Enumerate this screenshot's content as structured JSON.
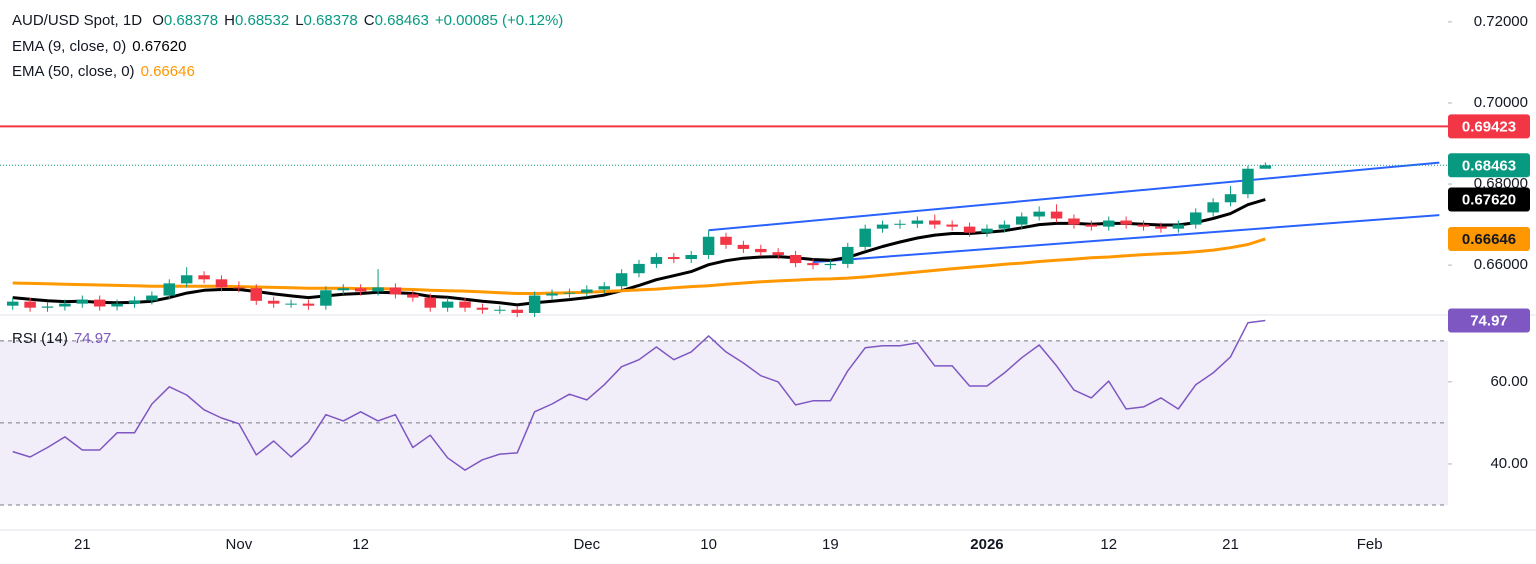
{
  "chart_data": {
    "type": "candlestick",
    "title": "AUD/USD Spot, 1D",
    "ohlc_legend": [
      {
        "label": "O",
        "value": "0.68378"
      },
      {
        "label": "H",
        "value": "0.68532"
      },
      {
        "label": "L",
        "value": "0.68378"
      },
      {
        "label": "C",
        "value": "0.68463"
      }
    ],
    "change": "+0.00085 (+0.12%)",
    "categories": [
      null,
      null,
      null,
      null,
      "21",
      null,
      null,
      null,
      null,
      null,
      null,
      null,
      null,
      "Nov",
      null,
      null,
      null,
      null,
      null,
      null,
      "12",
      null,
      null,
      null,
      null,
      null,
      null,
      null,
      null,
      null,
      null,
      null,
      null,
      "Dec",
      null,
      null,
      null,
      null,
      null,
      null,
      "10",
      null,
      null,
      null,
      null,
      null,
      null,
      "19",
      null,
      null,
      null,
      null,
      null,
      null,
      null,
      null,
      "2026",
      null,
      null,
      null,
      null,
      null,
      null,
      "12",
      null,
      null,
      null,
      null,
      null,
      null,
      "21",
      null,
      null,
      null,
      null,
      null,
      null,
      null,
      "Feb",
      null,
      null,
      null,
      null
    ],
    "open": [
      0.65,
      0.651,
      0.6495,
      0.6498,
      0.6505,
      0.6515,
      0.6498,
      0.6505,
      0.6513,
      0.6525,
      0.6555,
      0.6575,
      0.6565,
      0.6545,
      0.6543,
      0.6512,
      0.6505,
      0.6505,
      0.65,
      0.6538,
      0.6543,
      0.6535,
      0.6545,
      0.6528,
      0.652,
      0.6495,
      0.651,
      0.6495,
      0.649,
      0.649,
      0.6482,
      0.6525,
      0.653,
      0.6532,
      0.654,
      0.6548,
      0.658,
      0.6603,
      0.662,
      0.6615,
      0.6625,
      0.667,
      0.665,
      0.664,
      0.6632,
      0.6625,
      0.6605,
      0.66,
      0.6603,
      0.6645,
      0.669,
      0.67,
      0.6702,
      0.671,
      0.67,
      0.6695,
      0.668,
      0.669,
      0.67,
      0.672,
      0.6732,
      0.6715,
      0.67,
      0.6695,
      0.671,
      0.67,
      0.6695,
      0.669,
      0.67,
      0.673,
      0.6755,
      0.6775,
      0.68378,
      null,
      null,
      null,
      null,
      null,
      null,
      null,
      null,
      null,
      null
    ],
    "high": [
      0.652,
      0.652,
      0.6508,
      0.6515,
      0.6525,
      0.6525,
      0.6515,
      0.6523,
      0.6535,
      0.6565,
      0.6595,
      0.6585,
      0.6575,
      0.656,
      0.6553,
      0.6522,
      0.6515,
      0.6515,
      0.6548,
      0.6553,
      0.6553,
      0.659,
      0.6555,
      0.6538,
      0.653,
      0.652,
      0.652,
      0.6505,
      0.65,
      0.65,
      0.6535,
      0.654,
      0.6542,
      0.655,
      0.6558,
      0.659,
      0.6613,
      0.663,
      0.663,
      0.6635,
      0.6686,
      0.668,
      0.666,
      0.665,
      0.6642,
      0.6635,
      0.6615,
      0.6613,
      0.6655,
      0.67,
      0.671,
      0.6712,
      0.672,
      0.6725,
      0.671,
      0.6705,
      0.67,
      0.671,
      0.673,
      0.6745,
      0.675,
      0.6725,
      0.671,
      0.672,
      0.672,
      0.671,
      0.6705,
      0.671,
      0.674,
      0.6765,
      0.6795,
      0.6845,
      0.68532,
      null,
      null,
      null,
      null,
      null,
      null,
      null,
      null,
      null,
      null
    ],
    "low": [
      0.649,
      0.6485,
      0.6485,
      0.6488,
      0.6495,
      0.6488,
      0.6488,
      0.6495,
      0.6503,
      0.6515,
      0.6545,
      0.6555,
      0.6535,
      0.6533,
      0.6502,
      0.6495,
      0.6495,
      0.649,
      0.649,
      0.6528,
      0.6525,
      0.6525,
      0.6518,
      0.651,
      0.6485,
      0.6485,
      0.6485,
      0.648,
      0.648,
      0.6472,
      0.6472,
      0.6515,
      0.652,
      0.6522,
      0.653,
      0.6538,
      0.657,
      0.6593,
      0.6605,
      0.6605,
      0.6615,
      0.664,
      0.663,
      0.6622,
      0.6615,
      0.6595,
      0.659,
      0.659,
      0.6593,
      0.6635,
      0.668,
      0.669,
      0.6692,
      0.669,
      0.6685,
      0.667,
      0.667,
      0.668,
      0.669,
      0.671,
      0.6705,
      0.669,
      0.6685,
      0.6685,
      0.669,
      0.6685,
      0.668,
      0.668,
      0.669,
      0.672,
      0.6745,
      0.6765,
      0.68378,
      null,
      null,
      null,
      null,
      null,
      null,
      null,
      null,
      null,
      null
    ],
    "close": [
      0.651,
      0.6495,
      0.6498,
      0.6505,
      0.6515,
      0.6498,
      0.6505,
      0.6513,
      0.6525,
      0.6555,
      0.6575,
      0.6565,
      0.6545,
      0.6543,
      0.6512,
      0.6505,
      0.6505,
      0.65,
      0.6538,
      0.6543,
      0.6535,
      0.6545,
      0.6528,
      0.652,
      0.6495,
      0.651,
      0.6495,
      0.649,
      0.649,
      0.6482,
      0.6525,
      0.653,
      0.6532,
      0.654,
      0.6548,
      0.658,
      0.6603,
      0.662,
      0.6615,
      0.6625,
      0.667,
      0.665,
      0.664,
      0.6632,
      0.6625,
      0.6605,
      0.66,
      0.6603,
      0.6645,
      0.669,
      0.67,
      0.6702,
      0.671,
      0.67,
      0.6695,
      0.668,
      0.669,
      0.67,
      0.672,
      0.6732,
      0.6715,
      0.67,
      0.6695,
      0.671,
      0.67,
      0.6695,
      0.669,
      0.67,
      0.673,
      0.6755,
      0.6775,
      0.68378,
      0.68463,
      null,
      null,
      null,
      null,
      null,
      null,
      null,
      null,
      null,
      null
    ],
    "up_color": "#089981",
    "down_color": "#f23645",
    "series": [
      {
        "name": "EMA (9, close, 0)",
        "color": "#000000",
        "last_label": "0.67620",
        "values": [
          0.652,
          0.6516,
          0.6512,
          0.651,
          0.6511,
          0.6508,
          0.6507,
          0.6508,
          0.6511,
          0.652,
          0.6531,
          0.6538,
          0.654,
          0.654,
          0.6535,
          0.6529,
          0.6524,
          0.652,
          0.6524,
          0.6528,
          0.653,
          0.6533,
          0.6532,
          0.653,
          0.6523,
          0.6521,
          0.6516,
          0.6511,
          0.6507,
          0.6502,
          0.6507,
          0.6511,
          0.6515,
          0.652,
          0.6526,
          0.6537,
          0.655,
          0.6564,
          0.6574,
          0.6584,
          0.6601,
          0.6611,
          0.6617,
          0.662,
          0.6621,
          0.6618,
          0.6614,
          0.6612,
          0.6619,
          0.6633,
          0.6646,
          0.6657,
          0.6667,
          0.6674,
          0.6678,
          0.6678,
          0.6681,
          0.6685,
          0.6692,
          0.67,
          0.6703,
          0.6703,
          0.6701,
          0.6703,
          0.6703,
          0.6701,
          0.6699,
          0.6699,
          0.6705,
          0.6715,
          0.6727,
          0.6749,
          0.6762,
          null,
          null,
          null,
          null,
          null,
          null,
          null,
          null,
          null,
          null
        ]
      },
      {
        "name": "EMA (50, close, 0)",
        "color": "#ff9800",
        "last_label": "0.66646",
        "values": [
          0.6556,
          0.6555,
          0.6554,
          0.6553,
          0.6552,
          0.6551,
          0.655,
          0.6549,
          0.6548,
          0.6548,
          0.6548,
          0.6548,
          0.6548,
          0.6547,
          0.6546,
          0.6545,
          0.6544,
          0.6543,
          0.6543,
          0.6543,
          0.6542,
          0.6542,
          0.6541,
          0.654,
          0.6538,
          0.6537,
          0.6536,
          0.6534,
          0.6532,
          0.653,
          0.653,
          0.6531,
          0.6532,
          0.6533,
          0.6535,
          0.6537,
          0.6539,
          0.6541,
          0.6544,
          0.6547,
          0.6549,
          0.6553,
          0.6556,
          0.6559,
          0.6561,
          0.6563,
          0.6565,
          0.6566,
          0.6568,
          0.6571,
          0.6575,
          0.6579,
          0.6583,
          0.6587,
          0.6591,
          0.6595,
          0.6598,
          0.6602,
          0.6605,
          0.6609,
          0.6612,
          0.6615,
          0.6618,
          0.662,
          0.6623,
          0.6626,
          0.6628,
          0.663,
          0.6633,
          0.6637,
          0.6643,
          0.6651,
          0.66646,
          null,
          null,
          null,
          null,
          null,
          null,
          null,
          null,
          null,
          null
        ]
      }
    ],
    "ylim": [
      0.6477,
      0.7254
    ],
    "yticks": [
      {
        "value": 0.72,
        "label": "0.72000"
      },
      {
        "value": 0.7,
        "label": "0.70000"
      },
      {
        "value": 0.68,
        "label": "0.68000"
      },
      {
        "value": 0.66,
        "label": "0.66000"
      }
    ],
    "hlines": [
      {
        "value": 0.69423,
        "color": "#f23645"
      }
    ],
    "trendlines": [
      {
        "x": [
          40,
          82
        ],
        "y": [
          0.6686,
          0.6853
        ],
        "color": "#2962ff"
      },
      {
        "x": [
          46,
          82
        ],
        "y": [
          0.66074,
          0.67235
        ],
        "color": "#2962ff"
      }
    ],
    "rsi": {
      "name": "RSI (14)",
      "color": "#7e57c2",
      "ylim": [
        23.9,
        76.3
      ],
      "yticks": [
        {
          "value": 60,
          "label": "60.00"
        },
        {
          "value": 40,
          "label": "40.00"
        }
      ],
      "levels": [
        70,
        50,
        30
      ],
      "values": [
        43,
        41.7,
        44,
        46.6,
        43.4,
        43.4,
        47.6,
        47.6,
        54.6,
        58.8,
        56.8,
        53.2,
        51.2,
        49.8,
        42.2,
        45.6,
        41.7,
        45.4,
        52,
        50.5,
        52.7,
        50.5,
        52,
        44,
        47,
        41.5,
        38.5,
        41,
        42.4,
        42.7,
        52.7,
        54.6,
        57,
        55.6,
        59.3,
        63.7,
        65.4,
        68.5,
        65.4,
        67.3,
        71.2,
        67.3,
        64.6,
        61.5,
        60,
        54.4,
        55.4,
        55.4,
        62.7,
        68.3,
        68.8,
        68.8,
        69.5,
        63.9,
        63.9,
        59,
        59,
        62.2,
        65.9,
        69,
        63.9,
        58,
        56.1,
        60.2,
        53.4,
        53.9,
        56.1,
        53.4,
        59.3,
        62.2,
        66.1,
        74.4,
        74.97,
        null,
        null,
        null,
        null,
        null,
        null,
        null,
        null,
        null,
        null
      ]
    }
  }
}
